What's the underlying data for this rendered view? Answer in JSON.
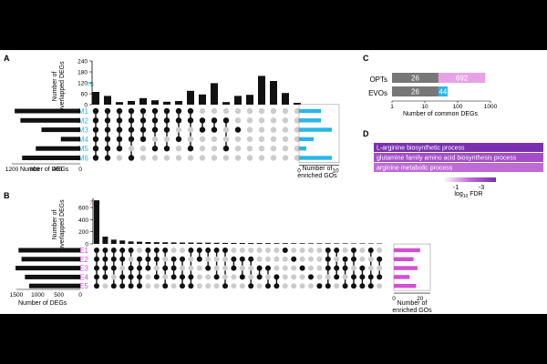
{
  "colors": {
    "bar": "#111111",
    "dot_on": "#111111",
    "dot_off": "#cccccc",
    "cyan": "#29b6e6",
    "magenta": "#d24fd2",
    "gray": "#777777",
    "pink": "#e8a0e8",
    "purple_dark": "#7b2fb0",
    "purple_mid": "#a54cc8",
    "purple_light": "#c06ad8"
  },
  "panels": {
    "a": "A",
    "b": "B",
    "c": "C",
    "d": "D"
  },
  "chart_data": [
    {
      "panel": "A",
      "type": "upset",
      "sets": [
        "M1",
        "M2",
        "M3",
        "M4",
        "M5",
        "M6"
      ],
      "ylabel_lines": [
        "Number of",
        "overlapped DEGs"
      ],
      "yticks": [
        "0",
        "60",
        "120",
        "180",
        "240"
      ],
      "ylim": [
        0,
        240
      ],
      "intersection_sizes": [
        70,
        48,
        14,
        20,
        36,
        24,
        16,
        20,
        76,
        56,
        118,
        14,
        48,
        54,
        158,
        130,
        64,
        10
      ],
      "first_bar_label": "70",
      "set_sizes": [
        1150,
        1050,
        680,
        340,
        780,
        1020
      ],
      "set_size_xlabel": "Number of DEGs",
      "set_size_ticks": [
        "1200",
        "800",
        "400",
        "0"
      ],
      "set_size_max": 1200,
      "matrix": [
        [
          1,
          1,
          1,
          1,
          1,
          1
        ],
        [
          1,
          1,
          1,
          1,
          1,
          1
        ],
        [
          1,
          1,
          1,
          1,
          1,
          0
        ],
        [
          1,
          1,
          1,
          1,
          0,
          1
        ],
        [
          1,
          1,
          1,
          1,
          0,
          0
        ],
        [
          1,
          1,
          1,
          0,
          1,
          0
        ],
        [
          1,
          1,
          1,
          0,
          1,
          0
        ],
        [
          1,
          1,
          0,
          1,
          0,
          0
        ],
        [
          1,
          1,
          0,
          0,
          1,
          0
        ],
        [
          0,
          1,
          1,
          0,
          0,
          0
        ],
        [
          0,
          1,
          1,
          0,
          0,
          0
        ],
        [
          0,
          1,
          0,
          0,
          1,
          0
        ],
        [
          0,
          0,
          1,
          0,
          0,
          0
        ],
        [
          0,
          0,
          0,
          0,
          0,
          0
        ],
        [
          0,
          0,
          0,
          0,
          0,
          0
        ],
        [
          0,
          0,
          0,
          0,
          0,
          0
        ],
        [
          0,
          0,
          0,
          0,
          0,
          0
        ],
        [
          0,
          0,
          0,
          0,
          0,
          0
        ]
      ],
      "go_values": [
        6,
        6,
        9,
        4,
        2,
        9
      ],
      "go_ticks": [
        "0",
        "10"
      ],
      "go_max": 10,
      "go_xlabel_lines": [
        "Number of",
        "enriched GOs"
      ]
    },
    {
      "panel": "B",
      "type": "upset",
      "sets": [
        "E1",
        "E2",
        "E3",
        "E4",
        "E5"
      ],
      "ylabel_lines": [
        "Number of",
        "overlapped DEGs"
      ],
      "yticks": [
        "0",
        "200",
        "400",
        "600"
      ],
      "ylim": [
        0,
        750
      ],
      "intersection_sizes": [
        718,
        120,
        70,
        56,
        40,
        36,
        30,
        28,
        26,
        24,
        22,
        22,
        20,
        20,
        18,
        16,
        16,
        15,
        14,
        14,
        13,
        12,
        12,
        11,
        11,
        10,
        10,
        10,
        9,
        9,
        8,
        8,
        8,
        7
      ],
      "first_bar_label": "718",
      "set_sizes": [
        1450,
        1380,
        1520,
        1300,
        1200
      ],
      "set_size_xlabel": "Number of DEGs",
      "set_size_ticks": [
        "1500",
        "1000",
        "500",
        "0"
      ],
      "set_size_max": 1500,
      "matrix": [
        [
          1,
          1,
          1,
          1,
          1
        ],
        [
          1,
          1,
          1,
          1,
          0
        ],
        [
          1,
          1,
          1,
          0,
          1
        ],
        [
          1,
          1,
          0,
          1,
          1
        ],
        [
          1,
          0,
          1,
          1,
          1
        ],
        [
          0,
          1,
          1,
          1,
          1
        ],
        [
          1,
          1,
          1,
          0,
          0
        ],
        [
          1,
          1,
          0,
          1,
          0
        ],
        [
          1,
          0,
          1,
          0,
          1
        ],
        [
          0,
          1,
          1,
          1,
          0
        ],
        [
          0,
          1,
          0,
          1,
          1
        ],
        [
          1,
          0,
          0,
          1,
          1
        ],
        [
          1,
          1,
          0,
          0,
          0
        ],
        [
          1,
          0,
          1,
          0,
          0
        ],
        [
          1,
          0,
          0,
          1,
          0
        ],
        [
          1,
          0,
          0,
          0,
          1
        ],
        [
          0,
          1,
          1,
          0,
          0
        ],
        [
          0,
          1,
          0,
          1,
          0
        ],
        [
          0,
          1,
          0,
          0,
          1
        ],
        [
          0,
          0,
          1,
          1,
          0
        ],
        [
          0,
          0,
          1,
          0,
          1
        ],
        [
          0,
          0,
          0,
          1,
          1
        ],
        [
          1,
          0,
          0,
          0,
          0
        ],
        [
          0,
          1,
          0,
          0,
          0
        ],
        [
          0,
          0,
          1,
          0,
          0
        ],
        [
          0,
          0,
          0,
          1,
          0
        ],
        [
          0,
          0,
          0,
          0,
          1
        ],
        [
          1,
          1,
          1,
          0,
          1
        ],
        [
          1,
          0,
          1,
          1,
          0
        ],
        [
          0,
          1,
          1,
          0,
          1
        ],
        [
          1,
          1,
          0,
          1,
          1
        ],
        [
          0,
          0,
          1,
          1,
          1
        ],
        [
          1,
          0,
          0,
          1,
          1
        ],
        [
          0,
          1,
          0,
          1,
          0
        ]
      ],
      "go_values": [
        20,
        15,
        18,
        12,
        17
      ],
      "go_ticks": [
        "0",
        "20"
      ],
      "go_max": 25,
      "go_xlabel_lines": [
        "Number of",
        "enriched GOs"
      ]
    },
    {
      "panel": "C",
      "type": "bar",
      "orientation": "horizontal",
      "scale": "log",
      "categories": [
        "OPTs",
        "EVOs"
      ],
      "series": [
        {
          "values": [
            26,
            26
          ]
        },
        {
          "values": [
            692,
            44
          ]
        }
      ],
      "xticks": [
        "1",
        "10",
        "100",
        "1000"
      ],
      "xlim": [
        1,
        1000
      ],
      "xlabel": "Number of common DEGs"
    },
    {
      "panel": "D",
      "type": "bar",
      "orientation": "horizontal",
      "categories": [
        "L-arginine biosynthetic process",
        "glutamine family amino acid biosynthesis process",
        "arginine metabolic process"
      ],
      "values": [
        -3.2,
        -2.6,
        -2.3
      ],
      "colorbar": {
        "ticks": [
          "-1",
          "-3"
        ],
        "label": "log",
        "label_sub": "10",
        "label_tail": " FDR"
      }
    }
  ]
}
